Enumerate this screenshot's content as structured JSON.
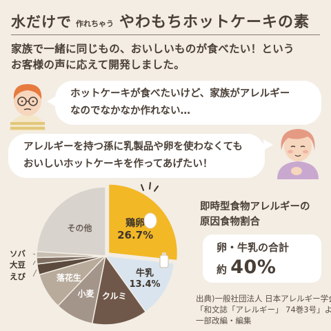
{
  "header": {
    "title_part1": "水だけで",
    "title_small": "作れちゃう",
    "title_part2": "やわもちホットケーキの素"
  },
  "intro": {
    "line1": "家族で一緒に同じもの、おいしいものが食べたい！という",
    "line2": "お客様の声に応えて開発しました。"
  },
  "bubble_parent": {
    "line1": "ホットケーキが食べたいけど、家族がアレルギー",
    "line2": "なのでなかなか作れない…"
  },
  "bubble_grandma": {
    "line1": "アレルギーを持つ孫に乳製品や卵を使わなくても",
    "line2": "おいしいホットケーキを作ってあげたい！"
  },
  "stat": {
    "title_line1": "即時型食物アレルギーの",
    "title_line2": "原因食物割合",
    "callout_line1": "卵・牛乳の合計",
    "callout_prefix": "約",
    "callout_value": "40%"
  },
  "source": {
    "line1": "出典)一般社団法人 日本アレルギー学会",
    "line2": "「和文誌「アレルギー」 74巻3号」より",
    "line3": "一部改編・編集"
  },
  "icons": [
    "parent-illustration",
    "grandmother-illustration",
    "egg-icon",
    "milk-bottle-icon",
    "sparkle-icon"
  ],
  "colors": {
    "background": "#f3ede4",
    "egg": "#f2b826",
    "milk": "#d9e4ee",
    "walnut": "#6f5849",
    "wheat": "#a3958a",
    "peanut": "#b8ab9c",
    "other": "#d8d3cd"
  },
  "chart_data": {
    "type": "pie",
    "title": "即時型食物アレルギーの原因食物割合",
    "slices": [
      {
        "label": "鶏卵",
        "value": 26.7,
        "value_label": "26.7%",
        "color": "#f2b826"
      },
      {
        "label": "牛乳",
        "value": 13.4,
        "value_label": "13.4%",
        "color": "#d9e4ee"
      },
      {
        "label": "クルミ",
        "value": 13.0,
        "color": "#6f5849"
      },
      {
        "label": "小麦",
        "value": 9.0,
        "color": "#a3958a"
      },
      {
        "label": "落花生",
        "value": 8.5,
        "color": "#b8ab9c"
      },
      {
        "label": "えび",
        "value": 2.5,
        "color": "#5b4a3d"
      },
      {
        "label": "大豆",
        "value": 1.5,
        "color": "#7f6f62"
      },
      {
        "label": "ソバ",
        "value": 1.4,
        "color": "#c7bdb1"
      },
      {
        "label": "その他",
        "value": 24.0,
        "color": "#d8d3cd"
      }
    ]
  }
}
